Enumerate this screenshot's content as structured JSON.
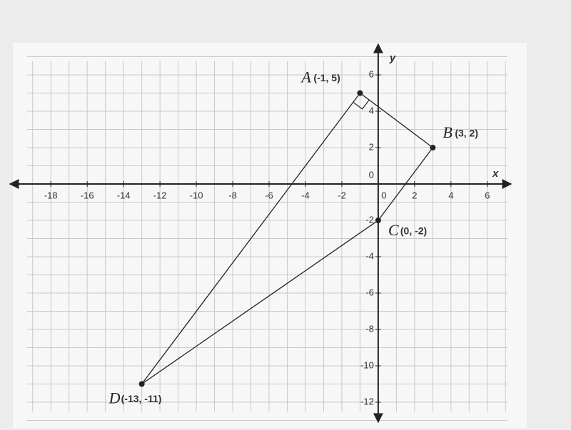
{
  "chart_data": {
    "type": "scatter",
    "x_label": "x",
    "y_label": "y",
    "xlim": [
      -19.5,
      7.5
    ],
    "ylim": [
      -13,
      7
    ],
    "xticks": [
      -18,
      -16,
      -14,
      -12,
      -10,
      -8,
      -6,
      -4,
      -2,
      0,
      2,
      4,
      6
    ],
    "yticks": [
      -12,
      -10,
      -8,
      -6,
      -4,
      -2,
      0,
      2,
      4,
      6
    ],
    "grid": true,
    "color": "#222222",
    "points": [
      {
        "name": "A",
        "label": "(-1, 5)",
        "x": -1,
        "y": 5
      },
      {
        "name": "B",
        "label": "(3, 2)",
        "x": 3,
        "y": 2
      },
      {
        "name": "C",
        "label": "(0, -2)",
        "x": 0,
        "y": -2
      },
      {
        "name": "D",
        "label": "(-13, -11)",
        "x": -13,
        "y": -11
      }
    ]
  }
}
